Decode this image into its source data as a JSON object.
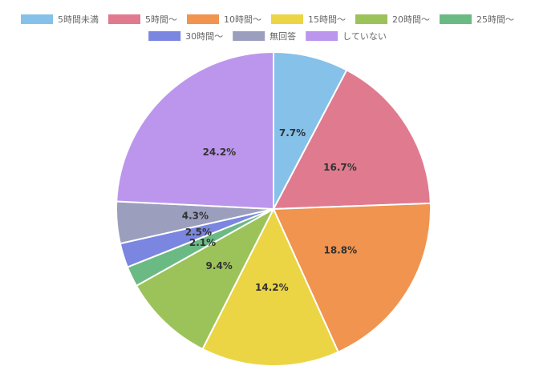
{
  "chart_data": {
    "type": "pie",
    "categories": [
      "5時間未満",
      "5時間〜",
      "10時間〜",
      "15時間〜",
      "20時間〜",
      "25時間〜",
      "30時間〜",
      "無回答",
      "していない"
    ],
    "values": [
      7.7,
      16.7,
      18.8,
      14.2,
      9.4,
      2.1,
      2.5,
      4.3,
      24.2
    ],
    "labels": [
      "7.7%",
      "16.7%",
      "18.8%",
      "14.2%",
      "9.4%",
      "2.1%",
      "2.5%",
      "4.3%",
      "24.2%"
    ],
    "colors": [
      "#85c1e9",
      "#e07b8f",
      "#f0944f",
      "#ebd545",
      "#9cc25a",
      "#6bba84",
      "#7b86e0",
      "#9b9fbd",
      "#bc96ec"
    ],
    "legend_position": "top",
    "start_angle": "12 o'clock",
    "direction": "clockwise"
  }
}
